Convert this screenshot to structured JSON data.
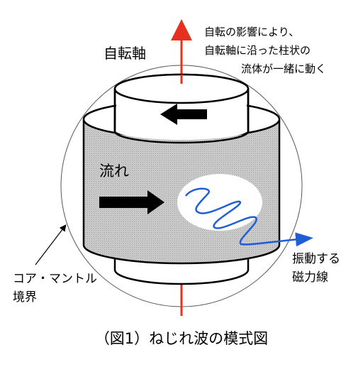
{
  "labels": {
    "rotation_axis": "自転軸",
    "note_line1": "自転の影響により、",
    "note_line2": "自転軸に沿った柱状の",
    "note_line3": "流体が一緒に動く",
    "flow": "流れ",
    "field_line1": "振動する",
    "field_line2": "磁力線",
    "boundary_line1": "コア・マントル",
    "boundary_line2": "境界",
    "caption": "（図1）ねじれ波の模式図"
  },
  "colors": {
    "axis": "#e8301e",
    "field_line": "#1f5fd6",
    "cylinder_fill": "#d2d2d2",
    "outline": "#000000",
    "sphere": "#555555"
  },
  "icons": {
    "flow_arrow_inner": "left-arrow-icon",
    "flow_arrow_outer": "right-arrow-icon"
  }
}
